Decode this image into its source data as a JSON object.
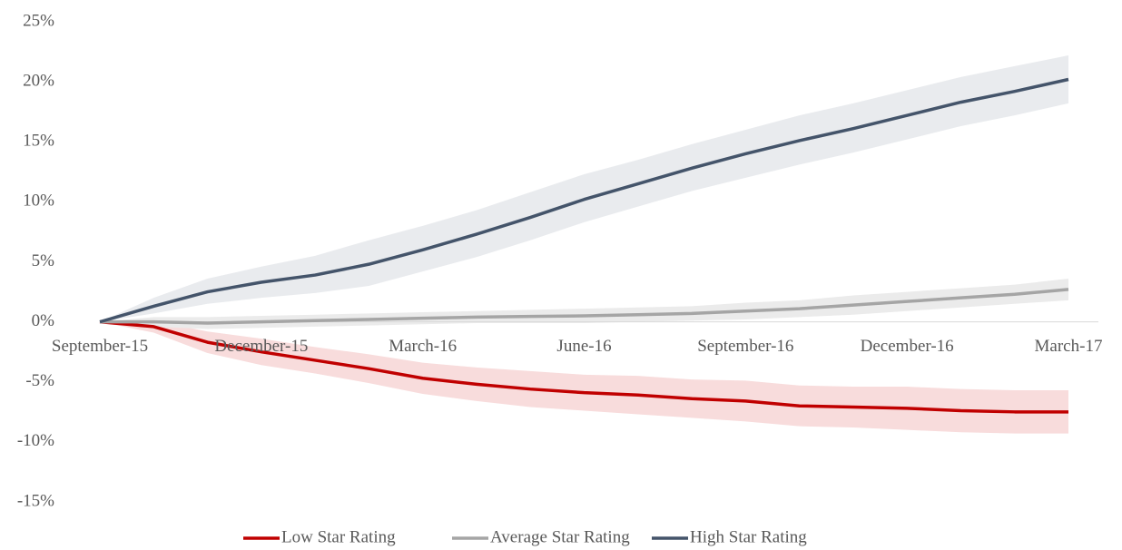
{
  "chart_data": {
    "type": "line",
    "categories": [
      "September-15",
      null,
      null,
      "December-15",
      null,
      null,
      "March-16",
      null,
      null,
      "June-16",
      null,
      null,
      "September-16",
      null,
      null,
      "December-16",
      null,
      null,
      "March-17"
    ],
    "series": [
      {
        "name": "Low Star Rating",
        "color": "#c00000",
        "band_color": "#f8dcdc",
        "values": [
          0,
          -0.4,
          -1.7,
          -2.5,
          -3.2,
          -3.9,
          -4.7,
          -5.2,
          -5.6,
          -5.9,
          -6.1,
          -6.4,
          -6.6,
          -7.0,
          -7.1,
          -7.2,
          -7.4,
          -7.5,
          -7.5
        ],
        "lower": [
          0,
          -0.9,
          -2.6,
          -3.6,
          -4.3,
          -5.1,
          -6.0,
          -6.6,
          -7.1,
          -7.4,
          -7.7,
          -8.0,
          -8.3,
          -8.7,
          -8.8,
          -9.0,
          -9.2,
          -9.3,
          -9.3
        ],
        "upper": [
          0,
          0.1,
          -0.8,
          -1.4,
          -2.1,
          -2.7,
          -3.4,
          -3.8,
          -4.1,
          -4.4,
          -4.5,
          -4.8,
          -4.9,
          -5.3,
          -5.4,
          -5.4,
          -5.6,
          -5.7,
          -5.7
        ]
      },
      {
        "name": "Average Star Rating",
        "color": "#a5a5a5",
        "band_color": "#ebebeb",
        "values": [
          0,
          0,
          -0.1,
          0,
          0.1,
          0.2,
          0.3,
          0.4,
          0.45,
          0.5,
          0.6,
          0.7,
          0.9,
          1.1,
          1.4,
          1.7,
          2.0,
          2.3,
          2.7
        ],
        "lower": [
          0,
          -0.4,
          -0.6,
          -0.5,
          -0.4,
          -0.3,
          -0.2,
          -0.1,
          -0.1,
          -0.1,
          0,
          0.1,
          0.2,
          0.4,
          0.6,
          0.9,
          1.2,
          1.5,
          1.8
        ],
        "upper": [
          0,
          0.4,
          0.4,
          0.5,
          0.6,
          0.7,
          0.8,
          0.9,
          1.0,
          1.1,
          1.2,
          1.3,
          1.6,
          1.8,
          2.2,
          2.5,
          2.8,
          3.1,
          3.6
        ]
      },
      {
        "name": "High Star Rating",
        "color": "#44546a",
        "band_color": "#e9ebee",
        "values": [
          0,
          1.3,
          2.5,
          3.3,
          3.9,
          4.8,
          6.0,
          7.3,
          8.7,
          10.2,
          11.5,
          12.8,
          14.0,
          15.1,
          16.1,
          17.2,
          18.3,
          19.2,
          20.2
        ],
        "lower": [
          0,
          0.7,
          1.5,
          2.0,
          2.4,
          3.0,
          4.2,
          5.4,
          6.8,
          8.3,
          9.6,
          10.9,
          12.0,
          13.1,
          14.1,
          15.2,
          16.3,
          17.2,
          18.2
        ],
        "upper": [
          0,
          2.0,
          3.6,
          4.6,
          5.5,
          6.8,
          8.0,
          9.3,
          10.8,
          12.3,
          13.5,
          14.8,
          16.0,
          17.2,
          18.2,
          19.3,
          20.4,
          21.3,
          22.2
        ]
      }
    ],
    "ylim": [
      -15,
      25
    ],
    "yticks": [
      {
        "value": -15,
        "label": "-15%"
      },
      {
        "value": -10,
        "label": "-10%"
      },
      {
        "value": -5,
        "label": "-5%"
      },
      {
        "value": 0,
        "label": "0%"
      },
      {
        "value": 5,
        "label": "5%"
      },
      {
        "value": 10,
        "label": "10%"
      },
      {
        "value": 15,
        "label": "15%"
      },
      {
        "value": 20,
        "label": "20%"
      },
      {
        "value": 25,
        "label": "25%"
      }
    ],
    "legend": "bottom"
  }
}
